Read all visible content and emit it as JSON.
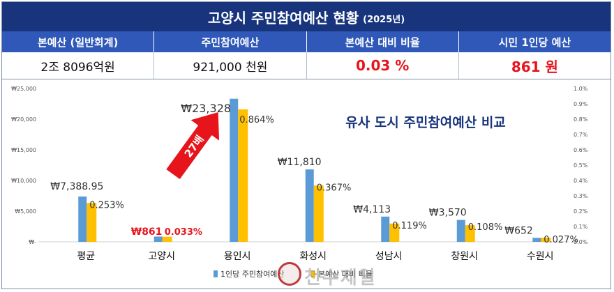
{
  "header": {
    "title": "고양시 주민참여예산 현황",
    "year": "(2025년)"
  },
  "summary": {
    "headers": [
      "본예산 (일반회계)",
      "주민참여예산",
      "본예산 대비 비율",
      "시민 1인당 예산"
    ],
    "values": [
      "2조 8096억원",
      "921,000 천원",
      "0.03 %",
      "861 원"
    ]
  },
  "watermark": "천수제일",
  "colors": {
    "title_bg": "#17347d",
    "header_bg": "#2f58b9",
    "bar_blue": "#5b9bd5",
    "bar_yellow": "#ffc000",
    "highlight_red": "#e8141c",
    "annotation_blue": "#17347d"
  },
  "chart_data": {
    "type": "bar",
    "title": "유사 도시 주민참여예산 비교",
    "categories": [
      "평균",
      "고양시",
      "용인시",
      "화성시",
      "성남시",
      "창원시",
      "수원시"
    ],
    "series": [
      {
        "name": "1인당 주민참여예산",
        "axis": "left",
        "color": "#5b9bd5",
        "values": [
          7388.95,
          861,
          23328,
          11810,
          4113,
          3570,
          652
        ]
      },
      {
        "name": "본예산 대비 비율",
        "axis": "right",
        "color": "#ffc000",
        "values": [
          0.253,
          0.033,
          0.864,
          0.367,
          0.119,
          0.108,
          0.027
        ]
      }
    ],
    "value_labels": [
      "₩7,388.95",
      "₩861",
      "₩23,328",
      "₩11,810",
      "₩4,113",
      "₩3,570",
      "₩652"
    ],
    "ratio_labels": [
      "0.253%",
      "0.033%",
      "0.864%",
      "0.367%",
      "0.119%",
      "0.108%",
      "0.027%"
    ],
    "highlight_index": 1,
    "ylim_left": [
      0,
      25000
    ],
    "yticks_left": [
      "₩-",
      "₩5,000",
      "₩10,000",
      "₩15,000",
      "₩20,000",
      "₩25,000"
    ],
    "ylim_right": [
      0,
      1.0
    ],
    "yticks_right": [
      "0.0%",
      "0.1%",
      "0.2%",
      "0.3%",
      "0.4%",
      "0.5%",
      "0.6%",
      "0.7%",
      "0.8%",
      "0.9%",
      "1.0%"
    ],
    "legend": [
      "1인당 주민참여예산",
      "본예산 대비 비율"
    ],
    "legend_position": "bottom",
    "arrow_label": "27배",
    "grid": false
  }
}
